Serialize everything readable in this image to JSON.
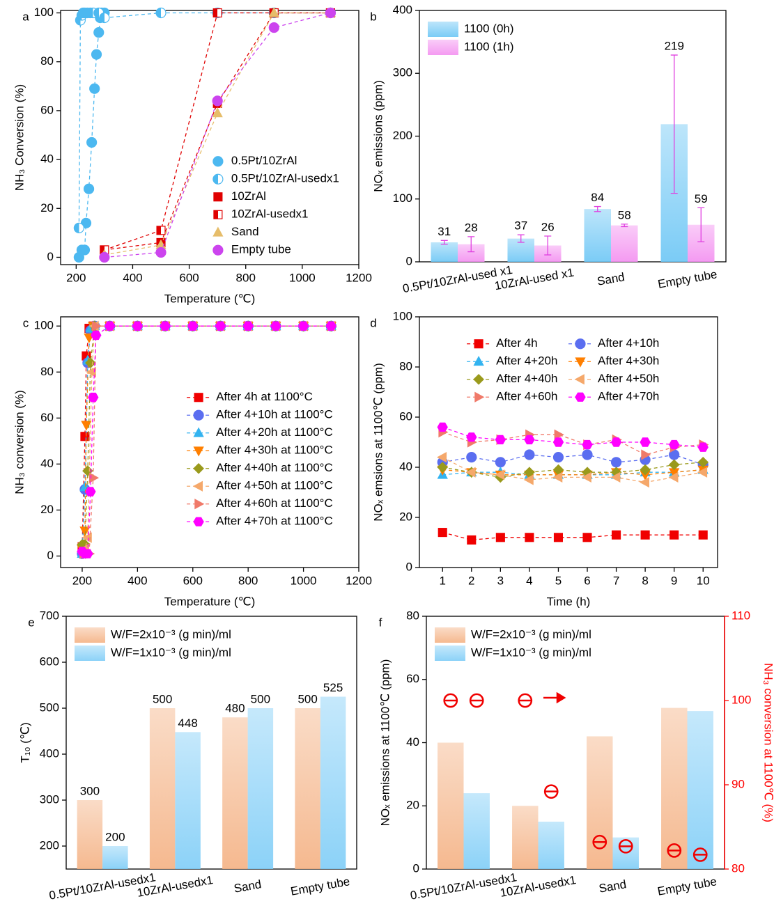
{
  "chart_data": [
    {
      "type": "line",
      "label": "a",
      "xlabel": "Temperature (℃)",
      "ylabel": "NH₃ Conversion (%)",
      "xlim": [
        145,
        1200
      ],
      "xticks": [
        200,
        400,
        600,
        800,
        1000,
        1200
      ],
      "ylim": [
        -3,
        101
      ],
      "yticks": [
        0,
        20,
        40,
        60,
        80,
        100
      ],
      "legend": "lower right",
      "legend_line": false,
      "series": [
        {
          "name": "0.5Pt/10ZrAl",
          "color": "#4cb8f0",
          "marker": "circle",
          "fill": "full",
          "x": [
            210,
            220,
            230,
            235,
            245,
            255,
            265,
            272,
            280,
            285,
            290,
            300
          ],
          "values": [
            0,
            3,
            3,
            14,
            28,
            47,
            69,
            83,
            92,
            98,
            100,
            100
          ]
        },
        {
          "name": "0.5Pt/10ZrAl-usedx1",
          "color": "#4cb8f0",
          "marker": "circle",
          "fill": "half",
          "x": [
            210,
            215,
            220,
            225,
            230,
            240,
            250,
            260,
            280,
            300,
            500,
            700,
            900,
            1100
          ],
          "values": [
            12,
            97,
            99,
            100,
            100,
            100,
            100,
            100,
            100,
            98,
            100,
            100,
            100,
            100
          ]
        },
        {
          "name": "10ZrAl",
          "color": "#e00000",
          "marker": "square",
          "fill": "full",
          "x": [
            300,
            500,
            700,
            900,
            1100
          ],
          "values": [
            3,
            6,
            63,
            100,
            100
          ]
        },
        {
          "name": "10ZrAl-usedx1",
          "color": "#e00000",
          "marker": "square",
          "fill": "half",
          "x": [
            300,
            500,
            700,
            900,
            1100
          ],
          "values": [
            3,
            11,
            100,
            100,
            100
          ]
        },
        {
          "name": "Sand",
          "color": "#e6bd6a",
          "marker": "triangle",
          "fill": "full",
          "x": [
            300,
            500,
            700,
            900,
            1100
          ],
          "values": [
            1,
            5,
            59,
            100,
            100
          ]
        },
        {
          "name": "Empty tube",
          "color": "#cc44ee",
          "marker": "circle",
          "fill": "full",
          "x": [
            300,
            500,
            700,
            900,
            1100
          ],
          "values": [
            0,
            2,
            64,
            94,
            100
          ]
        }
      ]
    },
    {
      "type": "bar",
      "label": "b",
      "ylabel": "NOₓ emissions (ppm)",
      "categories": [
        "0.5Pt/10ZrAl-used x1",
        "10ZrAl-used x1",
        "Sand",
        "Empty tube"
      ],
      "ylim": [
        0,
        400
      ],
      "yticks": [
        0,
        100,
        200,
        300,
        400
      ],
      "legend": "upper left",
      "data_labels": true,
      "error_color": "#e040e0",
      "series": [
        {
          "name": "1100 (0h)",
          "color": "#6cc6f5",
          "values": [
            31,
            37,
            84,
            219
          ],
          "errors": [
            3,
            6,
            4,
            110
          ]
        },
        {
          "name": "1100 (1h)",
          "color": "#f38ff0",
          "values": [
            28,
            26,
            58,
            59
          ],
          "errors": [
            12,
            15,
            2,
            27
          ]
        }
      ]
    },
    {
      "type": "line",
      "label": "c",
      "xlabel": "Temperature (℃)",
      "ylabel": "NH₃ conversion (%)",
      "xlim": [
        122,
        1200
      ],
      "xticks": [
        200,
        400,
        600,
        800,
        1000,
        1200
      ],
      "ylim": [
        -5,
        104
      ],
      "yticks": [
        0,
        20,
        40,
        60,
        80,
        100
      ],
      "legend": "center right",
      "legend_line": true,
      "series": [
        {
          "name": "After 4h at 1100°C",
          "color": "#f00000",
          "marker": "square",
          "fill": "full",
          "x": [
            200,
            210,
            215,
            225,
            240,
            300,
            400,
            500,
            600,
            700,
            800,
            900,
            1000,
            1100
          ],
          "values": [
            4,
            52,
            87,
            99,
            100,
            100,
            100,
            100,
            100,
            100,
            100,
            100,
            100,
            100
          ]
        },
        {
          "name": "After 4+10h at 1100°C",
          "color": "#5b6ef0",
          "marker": "circle",
          "fill": "full",
          "x": [
            200,
            210,
            220,
            230,
            245,
            300,
            400,
            500,
            600,
            700,
            800,
            900,
            1000,
            1100
          ],
          "values": [
            1,
            29,
            84,
            98,
            100,
            100,
            100,
            100,
            100,
            100,
            100,
            100,
            100,
            100
          ]
        },
        {
          "name": "After 4+20h at 1100°C",
          "color": "#33b3f0",
          "marker": "triangle",
          "fill": "full",
          "x": [
            200,
            210,
            220,
            230,
            245,
            300,
            400,
            500,
            600,
            700,
            800,
            900,
            1000,
            1100
          ],
          "values": [
            1,
            30,
            85,
            99,
            100,
            100,
            100,
            100,
            100,
            100,
            100,
            100,
            100,
            100
          ]
        },
        {
          "name": "After 4+30h at 1100°C",
          "color": "#ff7f00",
          "marker": "triangle-down",
          "fill": "full",
          "x": [
            200,
            210,
            215,
            225,
            240,
            300,
            400,
            500,
            600,
            700,
            800,
            900,
            1000,
            1100
          ],
          "values": [
            3,
            11,
            57,
            95,
            100,
            100,
            100,
            100,
            100,
            100,
            100,
            100,
            100,
            100
          ]
        },
        {
          "name": "After 4+40h at 1100°C",
          "color": "#9a9a1c",
          "marker": "diamond",
          "fill": "full",
          "x": [
            200,
            210,
            220,
            230,
            245,
            300,
            400,
            500,
            600,
            700,
            800,
            900,
            1000,
            1100
          ],
          "values": [
            5,
            5,
            37,
            84,
            100,
            100,
            100,
            100,
            100,
            100,
            100,
            100,
            100,
            100
          ]
        },
        {
          "name": "After 4+50h at 1100°C",
          "color": "#f5a86b",
          "marker": "triangle-left",
          "fill": "full",
          "x": [
            200,
            210,
            220,
            235,
            245,
            300,
            400,
            500,
            600,
            700,
            800,
            900,
            1000,
            1100
          ],
          "values": [
            2,
            3,
            8,
            80,
            100,
            100,
            100,
            100,
            100,
            100,
            100,
            100,
            100,
            100
          ]
        },
        {
          "name": "After 4+60h at 1100°C",
          "color": "#f07a6a",
          "marker": "triangle-right",
          "fill": "full",
          "x": [
            205,
            215,
            225,
            240,
            250,
            300,
            400,
            500,
            600,
            700,
            800,
            900,
            1000,
            1100
          ],
          "values": [
            1,
            1,
            1,
            34,
            100,
            100,
            100,
            100,
            100,
            100,
            100,
            100,
            100,
            100
          ]
        },
        {
          "name": "After 4+70h at 1100°C",
          "color": "#ff00ff",
          "marker": "hexagon",
          "fill": "full",
          "x": [
            200,
            210,
            220,
            230,
            240,
            250,
            300,
            400,
            500,
            600,
            700,
            800,
            900,
            1000,
            1100
          ],
          "values": [
            2,
            1,
            1,
            28,
            69,
            96,
            100,
            100,
            100,
            100,
            100,
            100,
            100,
            100,
            100
          ]
        }
      ]
    },
    {
      "type": "line",
      "label": "d",
      "xlabel": "Time (h)",
      "ylabel": "NOₓ emsions at 1100℃ (ppm)",
      "x": [
        1,
        2,
        3,
        4,
        5,
        6,
        7,
        8,
        9,
        10
      ],
      "xlim": [
        0.2,
        10.5
      ],
      "xticks": [
        1,
        2,
        3,
        4,
        5,
        6,
        7,
        8,
        9,
        10
      ],
      "ylim": [
        0,
        100
      ],
      "yticks": [
        0,
        20,
        40,
        60,
        80,
        100
      ],
      "legend": "upper center",
      "legend_columns": 2,
      "legend_line": true,
      "series": [
        {
          "name": "After 4h",
          "color": "#f00000",
          "marker": "square",
          "fill": "full",
          "values": [
            14,
            11,
            12,
            12,
            12,
            12,
            13,
            13,
            13,
            13
          ]
        },
        {
          "name": "After 4+10h",
          "color": "#5b6ef0",
          "marker": "circle",
          "fill": "full",
          "values": [
            42,
            44,
            42,
            45,
            44,
            45,
            42,
            43,
            45,
            41
          ]
        },
        {
          "name": "After 4+20h",
          "color": "#33b3f0",
          "marker": "triangle",
          "fill": "full",
          "values": [
            37,
            38,
            38,
            37,
            37,
            37,
            37,
            38,
            38,
            39
          ]
        },
        {
          "name": "After 4+30h",
          "color": "#ff7f00",
          "marker": "triangle-down",
          "fill": "full",
          "values": [
            39,
            38,
            37,
            37,
            37,
            37,
            38,
            37,
            38,
            39
          ]
        },
        {
          "name": "After 4+40h",
          "color": "#9a9a1c",
          "marker": "diamond",
          "fill": "full",
          "values": [
            40,
            38,
            36,
            38,
            39,
            38,
            38,
            39,
            41,
            42
          ]
        },
        {
          "name": "After 4+50h",
          "color": "#f5a86b",
          "marker": "triangle-left",
          "fill": "full",
          "values": [
            44,
            38,
            37,
            35,
            36,
            36,
            36,
            34,
            36,
            38
          ]
        },
        {
          "name": "After 4+60h",
          "color": "#f07a6a",
          "marker": "triangle-right",
          "fill": "full",
          "values": [
            54,
            50,
            51,
            53,
            53,
            49,
            51,
            45,
            48,
            49
          ]
        },
        {
          "name": "After 4+70h",
          "color": "#ff00ff",
          "marker": "hexagon",
          "fill": "full",
          "values": [
            56,
            52,
            51,
            51,
            50,
            49,
            50,
            50,
            49,
            48
          ]
        }
      ]
    },
    {
      "type": "bar",
      "label": "e",
      "ylabel": "T₁₀ (℃)",
      "categories": [
        "0.5Pt/10ZrAl-usedx1",
        "10ZrAl-usedx1",
        "Sand",
        "Empty tube"
      ],
      "ylim": [
        150,
        700
      ],
      "yticks": [
        200,
        300,
        400,
        500,
        600,
        700
      ],
      "legend": "upper left",
      "data_labels": true,
      "series": [
        {
          "name": "W/F=2x10⁻³ (g min)/ml",
          "color": "#f4b183",
          "values": [
            300,
            500,
            480,
            500
          ]
        },
        {
          "name": "W/F=1x10⁻³ (g min)/ml",
          "color": "#7fcdf7",
          "values": [
            200,
            448,
            500,
            525
          ]
        }
      ]
    },
    {
      "type": "bar",
      "label": "f",
      "ylabel": "NOₓ emissions at 1100℃ (ppm)",
      "y2label": "NH₃ conversion at 1100℃ (%)",
      "categories": [
        "0.5Pt/10ZrAl-usedx1",
        "10ZrAl-usedx1",
        "Sand",
        "Empty tube"
      ],
      "ylim": [
        0,
        80
      ],
      "yticks": [
        0,
        20,
        40,
        60,
        80
      ],
      "y2lim": [
        80,
        110
      ],
      "y2ticks": [
        80,
        90,
        100,
        110
      ],
      "y2_color": "#ff0000",
      "legend": "upper left",
      "data_labels": false,
      "series": [
        {
          "name": "W/F=2x10⁻³ (g min)/ml",
          "color": "#f4b183",
          "values": [
            40,
            20,
            42,
            51
          ]
        },
        {
          "name": "W/F=1x10⁻³ (g min)/ml",
          "color": "#7fcdf7",
          "values": [
            24,
            15,
            10,
            50
          ]
        },
        {
          "axis": "y2",
          "color": "#f00000",
          "marker": "circle-minus",
          "values": [
            100,
            100,
            83.2,
            82.2
          ]
        },
        {
          "axis": "y2",
          "color": "#f00000",
          "marker": "circle-minus",
          "values": [
            100,
            89.2,
            82.7,
            81.7
          ]
        }
      ]
    }
  ]
}
